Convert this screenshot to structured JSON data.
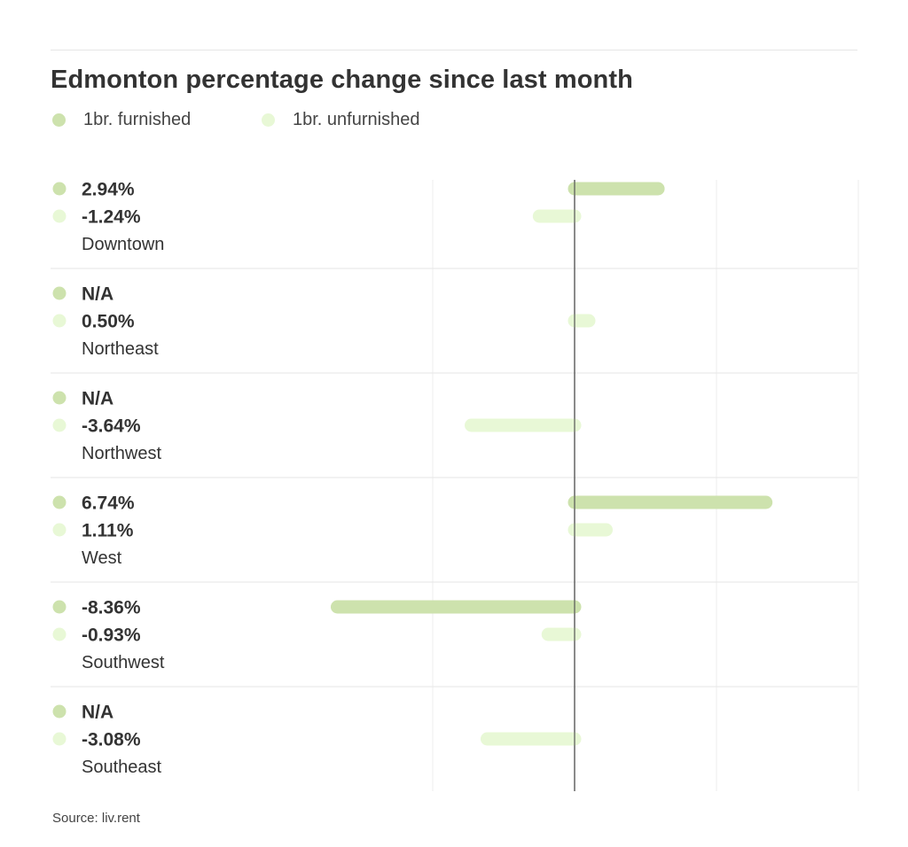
{
  "title": "Edmonton percentage change since last month",
  "legend": [
    {
      "label": "1br. furnished",
      "color": "#cde2ad"
    },
    {
      "label": "1br. unfurnished",
      "color": "#e8f8d6"
    }
  ],
  "source": "Source: liv.rent",
  "chart_data": {
    "type": "bar",
    "orientation": "horizontal",
    "title": "Edmonton percentage change since last month",
    "categories": [
      "Downtown",
      "Northeast",
      "Northwest",
      "West",
      "Southwest",
      "Southeast"
    ],
    "series": [
      {
        "name": "1br. furnished",
        "color": "#cde2ad",
        "values": [
          2.94,
          null,
          null,
          6.74,
          -8.36,
          null
        ],
        "labels": [
          "2.94%",
          "N/A",
          "N/A",
          "6.74%",
          "-8.36%",
          "N/A"
        ]
      },
      {
        "name": "1br. unfurnished",
        "color": "#e8f8d6",
        "values": [
          -1.24,
          0.5,
          -3.64,
          1.11,
          -0.93,
          -3.08
        ],
        "labels": [
          "-1.24%",
          "0.50%",
          "-3.64%",
          "1.11%",
          "-0.93%",
          "-3.08%"
        ]
      }
    ],
    "xlim": [
      -10,
      10
    ],
    "grid": true,
    "legend_position": "top-left"
  }
}
